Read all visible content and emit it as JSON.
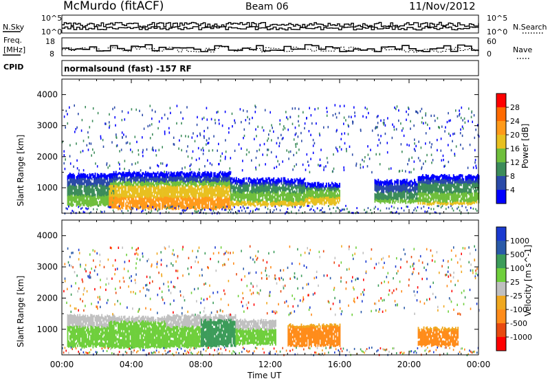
{
  "header": {
    "station": "McMurdo (fitACF)",
    "beam": "Beam 06",
    "date": "11/Nov/2012"
  },
  "left_labels": {
    "nsky": "N.Sky",
    "freq_line1": "Freq.",
    "freq_line2": "[MHz]",
    "cpid": "CPID"
  },
  "right_labels": {
    "nsearch": "N.Search",
    "nave": "Nave"
  },
  "strip_ticks": {
    "noise_left": [
      "10^5",
      "10^0"
    ],
    "noise_right": [
      "10^5",
      "10^0"
    ],
    "freq_left": [
      "18",
      "8"
    ],
    "nave_right": [
      "60",
      "0"
    ]
  },
  "cpid_text": "normalsound (fast) -157 RF",
  "colors": {
    "power_scale": [
      "#0000ff",
      "#2a4aa8",
      "#3c8c5a",
      "#6fbf3c",
      "#e8c020",
      "#ff9a1a",
      "#ff6a00",
      "#ff0000"
    ],
    "velocity_scale": [
      "#ff0000",
      "#e84a10",
      "#ff8c1a",
      "#f0a820",
      "#c0c0c0",
      "#6fcf3c",
      "#3c9c5a",
      "#2a5aa8",
      "#1a3ad0"
    ]
  },
  "chart_data": [
    {
      "type": "heatmap",
      "quantity": "Power",
      "xlabel": "",
      "ylabel": "Slant Range [km]",
      "xlim": [
        0,
        24
      ],
      "ylim": [
        180,
        4500
      ],
      "yticks": [
        1000,
        2000,
        3000,
        4000
      ],
      "colorbar_label": "Power [dB]",
      "colorbar_range": [
        0,
        32
      ],
      "colorbar_ticks": [
        "4",
        "8",
        "12",
        "16",
        "20",
        "24",
        "28"
      ],
      "echo_bands": [
        {
          "t0": 0.3,
          "t1": 3.0,
          "r0": 450,
          "r1": 1450,
          "level": 12
        },
        {
          "t0": 2.7,
          "t1": 9.7,
          "r0": 350,
          "r1": 1500,
          "level": 20
        },
        {
          "t0": 9.7,
          "t1": 14.0,
          "r0": 450,
          "r1": 1300,
          "level": 14
        },
        {
          "t0": 14.0,
          "t1": 16.0,
          "r0": 500,
          "r1": 1150,
          "level": 16
        },
        {
          "t0": 18.0,
          "t1": 20.5,
          "r0": 550,
          "r1": 1250,
          "level": 10
        },
        {
          "t0": 20.5,
          "t1": 24.0,
          "r0": 500,
          "r1": 1400,
          "level": 13
        }
      ]
    },
    {
      "type": "heatmap",
      "quantity": "Velocity",
      "xlabel": "Time UT",
      "ylabel": "Slant Range [km]",
      "xlim": [
        0,
        24
      ],
      "ylim": [
        180,
        4500
      ],
      "xticks": [
        "00:00",
        "04:00",
        "08:00",
        "12:00",
        "16:00",
        "20:00",
        "00:00"
      ],
      "yticks": [
        1000,
        2000,
        3000,
        4000
      ],
      "colorbar_label": "Velocity [m s^-1]",
      "colorbar_range": [
        -1000,
        1000
      ],
      "colorbar_ticks": [
        "1000",
        "500",
        "100",
        "25",
        "-25",
        "-100",
        "-500",
        "-1000"
      ],
      "echo_bands": [
        {
          "t0": 0.3,
          "t1": 3.0,
          "r0": 450,
          "r1": 1450,
          "level": 60
        },
        {
          "t0": 2.7,
          "t1": 6.0,
          "r0": 450,
          "r1": 1400,
          "level": 120
        },
        {
          "t0": 6.0,
          "t1": 8.0,
          "r0": 450,
          "r1": 1450,
          "level": 80
        },
        {
          "t0": 8.0,
          "t1": 10.0,
          "r0": 500,
          "r1": 1450,
          "level": 300
        },
        {
          "t0": 10.0,
          "t1": 12.3,
          "r0": 550,
          "r1": 1300,
          "level": 80
        },
        {
          "t0": 13.0,
          "t1": 16.0,
          "r0": 500,
          "r1": 1150,
          "level": -200
        },
        {
          "t0": 20.5,
          "t1": 22.8,
          "r0": 500,
          "r1": 1050,
          "level": -200
        }
      ]
    }
  ]
}
